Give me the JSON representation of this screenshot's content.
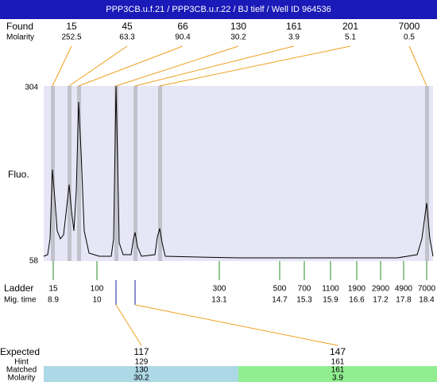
{
  "header": {
    "title": "PPP3CB.u.f.21 / PPP3CB.u.r.22 / BJ tielf / Well ID 964536"
  },
  "found": {
    "label": "Found",
    "molarity_label": "Molarity",
    "items": [
      {
        "size": 15,
        "molarity": 252.5
      },
      {
        "size": 45,
        "molarity": 63.3
      },
      {
        "size": 66,
        "molarity": 90.4
      },
      {
        "size": 130,
        "molarity": 30.2
      },
      {
        "size": 161,
        "molarity": 3.9
      },
      {
        "size": 201,
        "molarity": 5.1
      },
      {
        "size": 7000,
        "molarity": 0.5
      }
    ]
  },
  "axis": {
    "label": "Fluo.",
    "top": 304,
    "bottom": 58
  },
  "ladder": {
    "label": "Ladder",
    "time_label": "Mig. time",
    "items": [
      {
        "size": 15,
        "time": 8.9
      },
      {
        "size": 100,
        "time": 10
      },
      {
        "size": 300,
        "time": 13.1
      },
      {
        "size": 500,
        "time": 14.7
      },
      {
        "size": 700,
        "time": 15.3
      },
      {
        "size": 1100,
        "time": 15.9
      },
      {
        "size": 1900,
        "time": 16.6
      },
      {
        "size": 2900,
        "time": 17.2
      },
      {
        "size": 4900,
        "time": 17.8
      },
      {
        "size": 7000,
        "time": 18.4
      }
    ]
  },
  "expected": {
    "label": "Expected",
    "hint_label": "Hint",
    "matched_label": "Matched",
    "molarity_label": "Molarity",
    "items": [
      {
        "expected": 117,
        "hint": 129,
        "matched": 130,
        "molarity": 30.2
      },
      {
        "expected": 147,
        "hint": 161,
        "matched": 161,
        "molarity": 3.9
      }
    ]
  }
}
